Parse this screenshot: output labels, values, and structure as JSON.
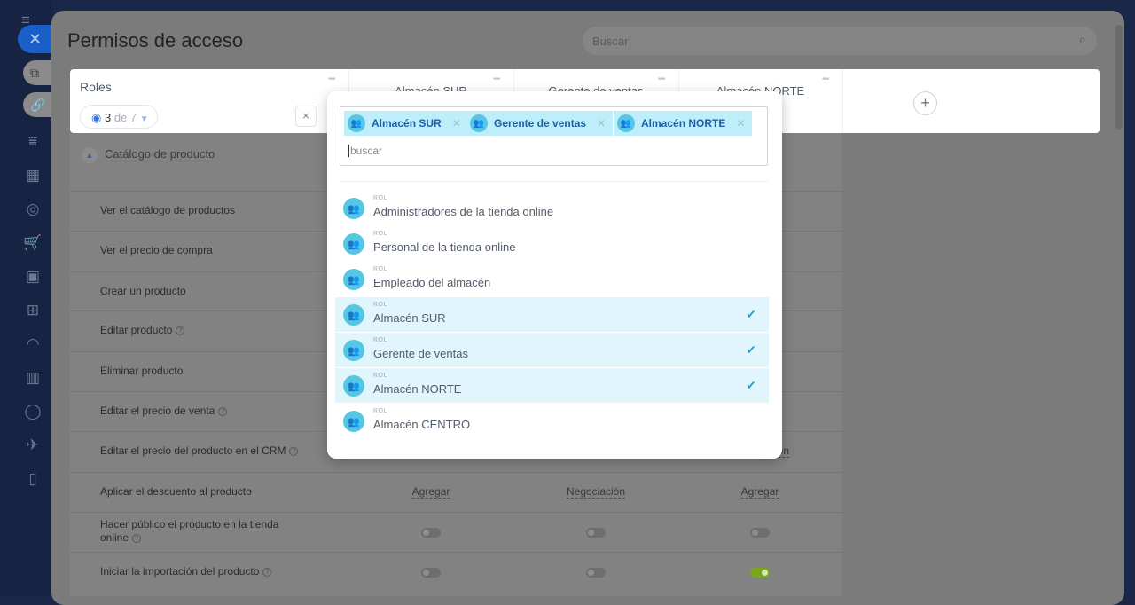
{
  "sidebar": {
    "icons": [
      "menu-icon",
      "filter-icon",
      "calendar-icon",
      "target-icon",
      "cart-icon",
      "wallet-icon",
      "inbox-icon",
      "speed-icon",
      "chart-icon",
      "circle-icon",
      "rocket-icon",
      "document-icon"
    ]
  },
  "modal": {
    "title": "Permisos de acceso",
    "search_placeholder": "Buscar"
  },
  "header": {
    "roles_label": "Roles",
    "counter_shown": "3",
    "counter_total": "de 7",
    "columns": [
      "Almacén SUR",
      "Gerente de ventas",
      "Almacén NORTE"
    ]
  },
  "section": {
    "title": "Catálogo de producto"
  },
  "rows": [
    {
      "label": "Ver el catálogo de productos",
      "help": false
    },
    {
      "label": "Ver el precio de compra",
      "help": false
    },
    {
      "label": "Crear un producto",
      "help": false
    },
    {
      "label": "Editar producto",
      "help": true
    },
    {
      "label": "Eliminar producto",
      "help": false
    },
    {
      "label": "Editar el precio de venta",
      "help": true
    },
    {
      "label": "Editar el precio del producto en el CRM",
      "help": true,
      "values": [
        "",
        "",
        "Negociación"
      ]
    },
    {
      "label": "Aplicar el descuento al producto",
      "help": false,
      "values": [
        "Agregar",
        "Negociación",
        "Agregar"
      ]
    },
    {
      "label": "Hacer público el producto en la tienda online",
      "help": true,
      "toggles": [
        false,
        false,
        false
      ]
    },
    {
      "label": "Iniciar la importación del producto",
      "help": true,
      "toggles": [
        false,
        false,
        true
      ]
    }
  ],
  "popup": {
    "selected_tags": [
      "Almacén SUR",
      "Gerente de ventas",
      "Almacén NORTE"
    ],
    "search_placeholder": "buscar",
    "items": [
      {
        "type": "ROL",
        "name": "Administradores de la tienda online",
        "selected": false
      },
      {
        "type": "ROL",
        "name": "Personal de la tienda online",
        "selected": false
      },
      {
        "type": "ROL",
        "name": "Empleado del almacén",
        "selected": false
      },
      {
        "type": "ROL",
        "name": "Almacén SUR",
        "selected": true
      },
      {
        "type": "ROL",
        "name": "Gerente de ventas",
        "selected": true
      },
      {
        "type": "ROL",
        "name": "Almacén NORTE",
        "selected": true
      },
      {
        "type": "ROL",
        "name": "Almacén CENTRO",
        "selected": false
      }
    ]
  },
  "colors": {
    "accent": "#2f7ae5",
    "tag_bg": "#bdeefa",
    "selected_bg": "#e1f5fc",
    "toggle_on": "#7aa51c"
  }
}
